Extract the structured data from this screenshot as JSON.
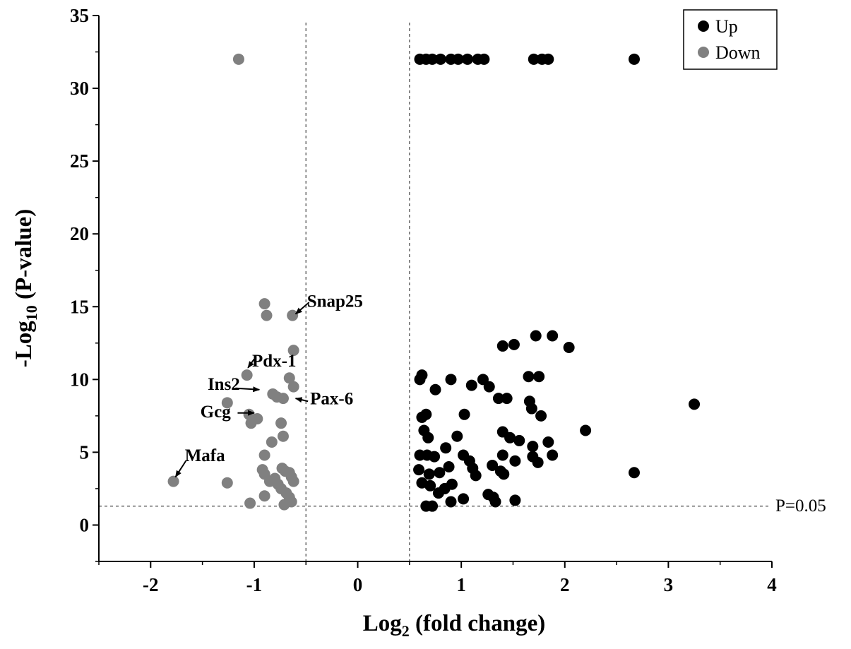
{
  "chart_data": {
    "type": "scatter",
    "xlabel": "Log₂ (fold change)",
    "xlabel_parts": [
      "Log",
      "2",
      " (fold change)"
    ],
    "ylabel": "-Log₁₀ (P-value)",
    "ylabel_parts": [
      "-Log",
      "10",
      " (P-value)"
    ],
    "xlim": [
      -2.5,
      4
    ],
    "ylim": [
      -2.5,
      35
    ],
    "x_ticks": [
      -2,
      -1,
      0,
      1,
      2,
      3,
      4
    ],
    "y_ticks": [
      0,
      5,
      10,
      15,
      20,
      25,
      30,
      35
    ],
    "grid": false,
    "legend_position": "top-right",
    "thresholds": {
      "vertical": [
        -0.5,
        0.5
      ],
      "horizontal": 1.3,
      "horizontal_label": "P=0.05"
    },
    "series": [
      {
        "name": "Up",
        "color": "#000000",
        "points": [
          [
            0.6,
            32
          ],
          [
            0.66,
            32
          ],
          [
            0.72,
            32
          ],
          [
            0.8,
            32
          ],
          [
            0.9,
            32
          ],
          [
            0.97,
            32
          ],
          [
            1.06,
            32
          ],
          [
            1.16,
            32
          ],
          [
            1.22,
            32
          ],
          [
            1.7,
            32
          ],
          [
            1.78,
            32
          ],
          [
            1.84,
            32
          ],
          [
            2.67,
            32
          ],
          [
            1.72,
            13.0
          ],
          [
            1.88,
            13.0
          ],
          [
            1.51,
            12.4
          ],
          [
            1.4,
            12.3
          ],
          [
            2.04,
            12.2
          ],
          [
            0.6,
            10.0
          ],
          [
            0.62,
            10.3
          ],
          [
            0.9,
            10.0
          ],
          [
            1.21,
            10.0
          ],
          [
            1.27,
            9.5
          ],
          [
            1.1,
            9.6
          ],
          [
            0.75,
            9.3
          ],
          [
            1.65,
            10.2
          ],
          [
            1.75,
            10.2
          ],
          [
            1.36,
            8.7
          ],
          [
            1.44,
            8.7
          ],
          [
            1.66,
            8.5
          ],
          [
            1.68,
            8.0
          ],
          [
            1.77,
            7.5
          ],
          [
            3.25,
            8.3
          ],
          [
            1.03,
            7.6
          ],
          [
            0.62,
            7.4
          ],
          [
            0.66,
            7.6
          ],
          [
            2.2,
            6.5
          ],
          [
            0.64,
            6.5
          ],
          [
            0.68,
            6.0
          ],
          [
            1.4,
            6.4
          ],
          [
            0.96,
            6.1
          ],
          [
            1.47,
            6.0
          ],
          [
            1.56,
            5.8
          ],
          [
            1.84,
            5.7
          ],
          [
            1.69,
            5.4
          ],
          [
            0.85,
            5.3
          ],
          [
            0.6,
            4.8
          ],
          [
            0.67,
            4.8
          ],
          [
            0.74,
            4.7
          ],
          [
            1.02,
            4.8
          ],
          [
            1.08,
            4.4
          ],
          [
            1.4,
            4.8
          ],
          [
            1.52,
            4.4
          ],
          [
            1.74,
            4.3
          ],
          [
            1.88,
            4.8
          ],
          [
            1.69,
            4.7
          ],
          [
            1.11,
            3.9
          ],
          [
            1.14,
            3.4
          ],
          [
            1.3,
            4.1
          ],
          [
            1.38,
            3.7
          ],
          [
            1.41,
            3.5
          ],
          [
            0.59,
            3.8
          ],
          [
            0.69,
            3.5
          ],
          [
            0.79,
            3.6
          ],
          [
            0.88,
            4.0
          ],
          [
            2.67,
            3.6
          ],
          [
            0.62,
            2.9
          ],
          [
            0.7,
            2.7
          ],
          [
            0.78,
            2.2
          ],
          [
            0.84,
            2.5
          ],
          [
            0.91,
            2.8
          ],
          [
            0.66,
            1.3
          ],
          [
            0.72,
            1.3
          ],
          [
            0.9,
            1.6
          ],
          [
            1.02,
            1.8
          ],
          [
            1.26,
            2.1
          ],
          [
            1.33,
            1.6
          ],
          [
            1.52,
            1.7
          ],
          [
            1.31,
            1.9
          ]
        ]
      },
      {
        "name": "Down",
        "color": "#808080",
        "points": [
          [
            -1.15,
            32
          ],
          [
            -0.9,
            15.2
          ],
          [
            -0.88,
            14.4
          ],
          [
            -0.63,
            14.4
          ],
          [
            -0.62,
            12.0
          ],
          [
            -1.07,
            10.3
          ],
          [
            -0.66,
            10.1
          ],
          [
            -0.62,
            9.5
          ],
          [
            -0.82,
            9.0
          ],
          [
            -0.78,
            8.8
          ],
          [
            -0.72,
            8.7
          ],
          [
            -1.26,
            8.4
          ],
          [
            -1.05,
            7.6
          ],
          [
            -1.03,
            7.0
          ],
          [
            -0.97,
            7.3
          ],
          [
            -0.74,
            7.0
          ],
          [
            -0.72,
            6.1
          ],
          [
            -0.83,
            5.7
          ],
          [
            -0.9,
            4.8
          ],
          [
            -1.78,
            3.0
          ],
          [
            -1.26,
            2.9
          ],
          [
            -0.92,
            3.8
          ],
          [
            -0.9,
            3.5
          ],
          [
            -0.85,
            3.0
          ],
          [
            -0.8,
            3.2
          ],
          [
            -0.77,
            2.8
          ],
          [
            -0.73,
            3.9
          ],
          [
            -0.7,
            3.7
          ],
          [
            -0.66,
            3.6
          ],
          [
            -0.64,
            3.3
          ],
          [
            -0.62,
            3.0
          ],
          [
            -0.74,
            2.5
          ],
          [
            -0.69,
            2.2
          ],
          [
            -0.66,
            1.9
          ],
          [
            -0.64,
            1.6
          ],
          [
            -0.71,
            1.4
          ],
          [
            -0.9,
            2.0
          ],
          [
            -1.04,
            1.5
          ]
        ]
      }
    ],
    "annotations": [
      {
        "label": "Snap25",
        "point": [
          -0.6,
          14.5
        ],
        "text_at": [
          -0.49,
          15.0
        ],
        "arrow_from": [
          -0.47,
          15.3
        ],
        "anchor": "start"
      },
      {
        "label": "Pdx-1",
        "point": [
          -1.06,
          10.8
        ],
        "text_at": [
          -1.02,
          10.9
        ],
        "arrow_from": [
          -1.0,
          11.4
        ],
        "anchor": "start"
      },
      {
        "label": "Ins2",
        "point": [
          -0.95,
          9.3
        ],
        "text_at": [
          -1.45,
          9.3
        ],
        "arrow_from": [
          -1.18,
          9.4
        ],
        "anchor": "start"
      },
      {
        "label": "Pax-6",
        "point": [
          -0.6,
          8.7
        ],
        "text_at": [
          -0.46,
          8.3
        ],
        "arrow_from": [
          -0.48,
          8.5
        ],
        "anchor": "start"
      },
      {
        "label": "Gcg",
        "point": [
          -1.0,
          7.7
        ],
        "text_at": [
          -1.52,
          7.4
        ],
        "arrow_from": [
          -1.16,
          7.7
        ],
        "anchor": "start"
      },
      {
        "label": "Mafa",
        "point": [
          -1.76,
          3.3
        ],
        "text_at": [
          -1.67,
          4.4
        ],
        "arrow_from": [
          -1.66,
          4.4
        ],
        "anchor": "start"
      }
    ]
  }
}
